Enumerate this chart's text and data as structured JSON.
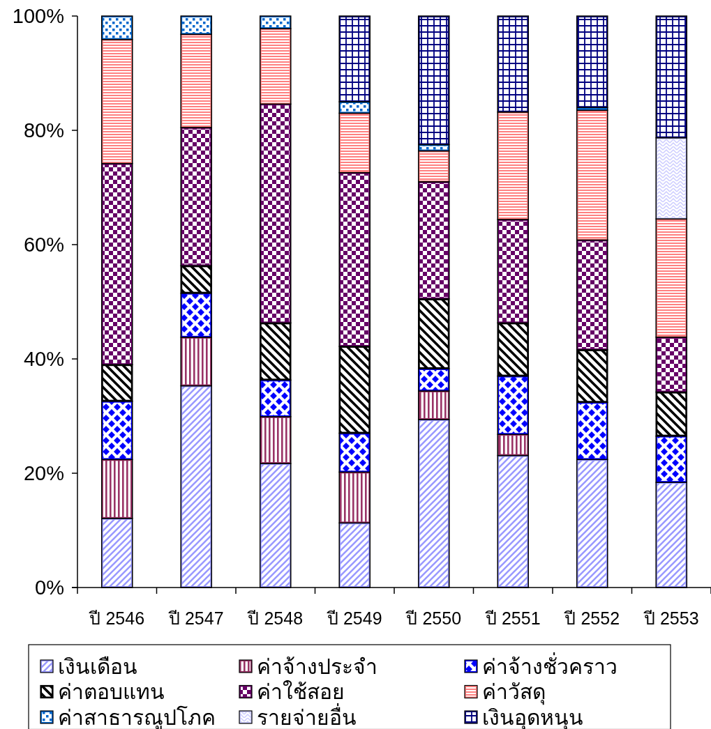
{
  "chart_data": {
    "type": "bar",
    "stacked": true,
    "categories": [
      "ปี 2546",
      "ปี 2547",
      "ปี 2548",
      "ปี 2549",
      "ปี 2550",
      "ปี 2551",
      "ปี 2552",
      "ปี 2553"
    ],
    "series": [
      {
        "name": "เงินเดือน",
        "color": "#9999ff",
        "values": [
          12.1,
          35.3,
          21.7,
          11.3,
          29.4,
          23.1,
          22.4,
          18.4
        ]
      },
      {
        "name": "ค่าจ้างประจำ",
        "color": "#993366",
        "values": [
          10.3,
          8.5,
          8.2,
          8.9,
          5.0,
          3.7,
          0,
          0
        ]
      },
      {
        "name": "ค่าจ้างชั่วคราว",
        "color": "#0000ff",
        "values": [
          10.2,
          7.7,
          6.4,
          6.8,
          3.9,
          10.2,
          10.0,
          8.1
        ]
      },
      {
        "name": "ค่าตอบแทน",
        "color": "#000000",
        "values": [
          6.4,
          4.8,
          10.0,
          15.2,
          12.2,
          9.3,
          9.2,
          7.7
        ]
      },
      {
        "name": "ค่าใช้สอย",
        "color": "#660066",
        "values": [
          35.2,
          24.2,
          38.3,
          30.4,
          20.5,
          18.1,
          19.2,
          9.6
        ]
      },
      {
        "name": "ค่าวัสดุ",
        "color": "#ff8080",
        "values": [
          21.7,
          16.3,
          13.2,
          10.4,
          5.4,
          18.8,
          22.7,
          20.7
        ]
      },
      {
        "name": "ค่าสาธารณูปโภค",
        "color": "#0066cc",
        "values": [
          4.1,
          3.2,
          2.2,
          2.0,
          1.1,
          0,
          0.5,
          0
        ]
      },
      {
        "name": "รายจ่ายอื่น",
        "color": "#ccccff",
        "values": [
          0,
          0,
          0,
          0,
          0,
          0,
          0,
          14.2
        ]
      },
      {
        "name": "เงินอุดหนุน",
        "color": "#000080",
        "values": [
          0,
          0,
          0,
          15.0,
          22.5,
          16.8,
          16.0,
          21.3
        ]
      }
    ],
    "ylim": [
      0,
      100
    ],
    "yticks": [
      {
        "value": 0,
        "label": "0%"
      },
      {
        "value": 20,
        "label": "20%"
      },
      {
        "value": 40,
        "label": "40%"
      },
      {
        "value": 60,
        "label": "60%"
      },
      {
        "value": 80,
        "label": "80%"
      },
      {
        "value": 100,
        "label": "100%"
      }
    ],
    "legend": "bottom"
  }
}
